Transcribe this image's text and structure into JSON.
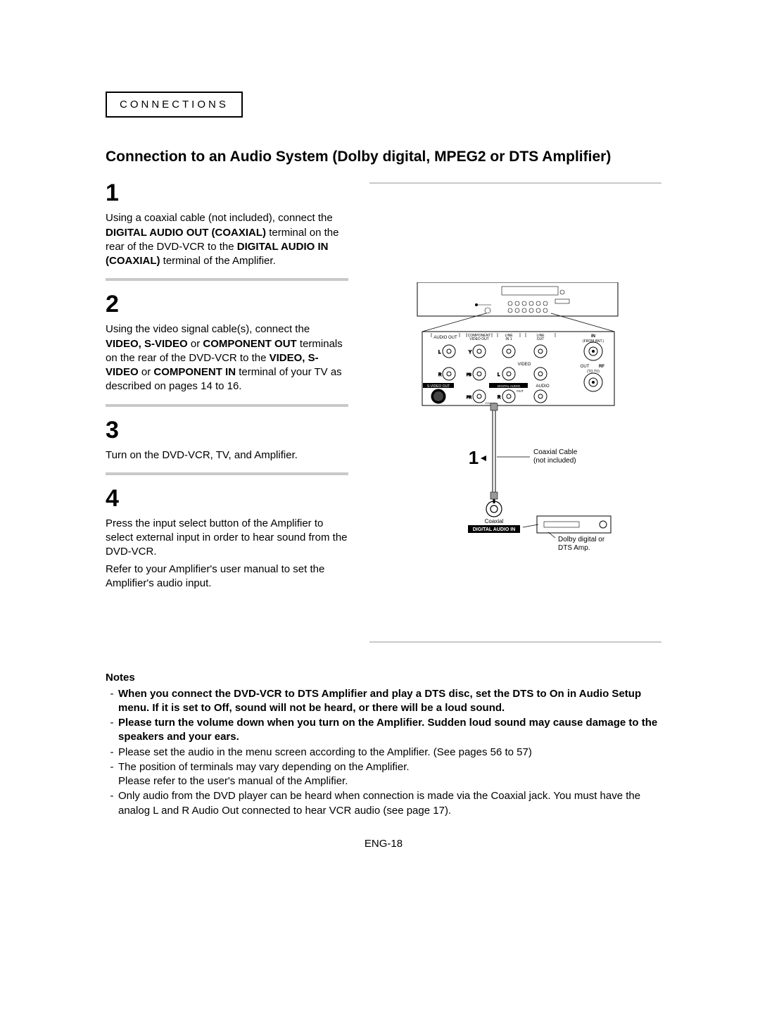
{
  "section_label": "CONNECTIONS",
  "main_title": "Connection to an Audio System (Dolby digital, MPEG2 or DTS Amplifier)",
  "steps": {
    "s1": {
      "num": "1",
      "text_a": "Using a coaxial cable (not included), connect the ",
      "bold_a": "DIGITAL AUDIO OUT (COAXIAL)",
      "text_b": " terminal on the rear of the DVD-VCR to the ",
      "bold_b": "DIGITAL AUDIO IN (COAXIAL)",
      "text_c": " terminal of the Amplifier."
    },
    "s2": {
      "num": "2",
      "text_a": "Using the video signal cable(s), connect the ",
      "bold_a": "VIDEO, S-VIDEO",
      "text_a2": " or ",
      "bold_a2": "COMPONENT OUT",
      "text_b": " terminals on the rear of the DVD-VCR to the ",
      "bold_b": "VIDEO, S-VIDEO",
      "text_b2": " or ",
      "bold_b2": "COMPONENT IN",
      "text_c": " terminal of your TV as described on pages 14 to 16."
    },
    "s3": {
      "num": "3",
      "text": "Turn on the DVD-VCR, TV, and Amplifier."
    },
    "s4": {
      "num": "4",
      "text_a": "Press the input select button of the Amplifier to select external input in order to hear sound from the DVD-VCR.",
      "text_b": "Refer to your Amplifier's user manual to set the Amplifier's audio input."
    }
  },
  "diagram": {
    "labels": {
      "audio_out": "AUDIO OUT",
      "component": "COMPONENT\nVIDEO OUT",
      "line_in": "LINE\nIN 1",
      "line_out": "LINE\nOUT",
      "in": "IN",
      "from_ant": "(FROM ANT.)",
      "video": "VIDEO",
      "out_rf": "OUT   RF",
      "to_tv": "(TO TV)",
      "svideo": "S-VIDEO OUT",
      "digital_audio": "DIGITAL AUDIO\nOUT",
      "audio": "AUDIO",
      "coaxial": "COAXIAL",
      "l": "L",
      "r": "R",
      "y": "Y",
      "pb": "PB",
      "pr": "PR"
    },
    "callout_num": "1",
    "cable_label_a": "Coaxial Cable",
    "cable_label_b": "(not included)",
    "coaxial_label": "Coaxial",
    "digital_in": "DIGITAL AUDIO IN",
    "amp_label_a": "Dolby digital or",
    "amp_label_b": "DTS Amp."
  },
  "notes": {
    "title": "Notes",
    "items": [
      {
        "bold": true,
        "text": "When you connect the DVD-VCR to DTS Amplifier and play a DTS disc, set the DTS to On in Audio Setup menu. If it is set to Off, sound will not be heard, or there will be a loud sound."
      },
      {
        "bold": true,
        "text": "Please turn the volume down when you turn on the Amplifier. Sudden loud sound may cause damage to the speakers and your ears."
      },
      {
        "bold": false,
        "text": "Please set the audio in the menu screen according to the Amplifier. (See pages 56 to 57)"
      },
      {
        "bold": false,
        "text": "The position of terminals may vary depending on the Amplifier.\nPlease refer to the user's manual of the Amplifier."
      },
      {
        "bold": false,
        "text": "Only audio from the DVD player can be heard when connection is made via the Coaxial jack. You must have the analog L and R Audio Out connected to hear VCR audio (see page 17)."
      }
    ]
  },
  "page_number": "ENG-18",
  "colors": {
    "step_divider": "#c9c9c9",
    "text": "#000000",
    "bg": "#ffffff"
  },
  "typography": {
    "body_fontsize": 15,
    "title_fontsize": 21,
    "stepnum_fontsize": 34
  }
}
